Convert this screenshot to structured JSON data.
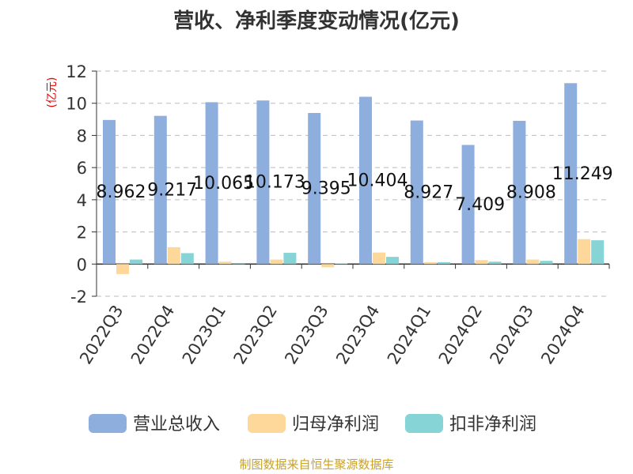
{
  "chart_data": {
    "type": "bar",
    "title": "营收、净利季度变动情况(亿元)",
    "ylabel": "(亿元)",
    "ylim": [
      -2,
      12
    ],
    "yticks": [
      "-2",
      "0",
      "2",
      "4",
      "6",
      "8",
      "10",
      "12"
    ],
    "categories": [
      "2022Q3",
      "2022Q4",
      "2023Q1",
      "2023Q2",
      "2023Q3",
      "2023Q4",
      "2024Q1",
      "2024Q2",
      "2024Q3",
      "2024Q4"
    ],
    "series": [
      {
        "name": "营业总收入",
        "color": "#8eaedd",
        "values": [
          8.962,
          9.217,
          10.065,
          10.173,
          9.395,
          10.404,
          8.927,
          7.409,
          8.908,
          11.249
        ],
        "labels": [
          "8.962",
          "9.217",
          "10.065",
          "10.173",
          "9.395",
          "10.404",
          "8.927",
          "7.409",
          "8.908",
          "11.249"
        ]
      },
      {
        "name": "归母净利润",
        "color": "#fdd89a",
        "values": [
          -0.62,
          1.05,
          0.15,
          0.28,
          -0.2,
          0.72,
          0.12,
          0.25,
          0.28,
          1.55
        ]
      },
      {
        "name": "扣非净利润",
        "color": "#86d4d6",
        "values": [
          0.28,
          0.68,
          0.02,
          0.7,
          0.04,
          0.45,
          0.12,
          0.15,
          0.2,
          1.48
        ]
      }
    ],
    "grid": true,
    "legend_position": "bottom"
  },
  "source": "制图数据来自恒生聚源数据库"
}
